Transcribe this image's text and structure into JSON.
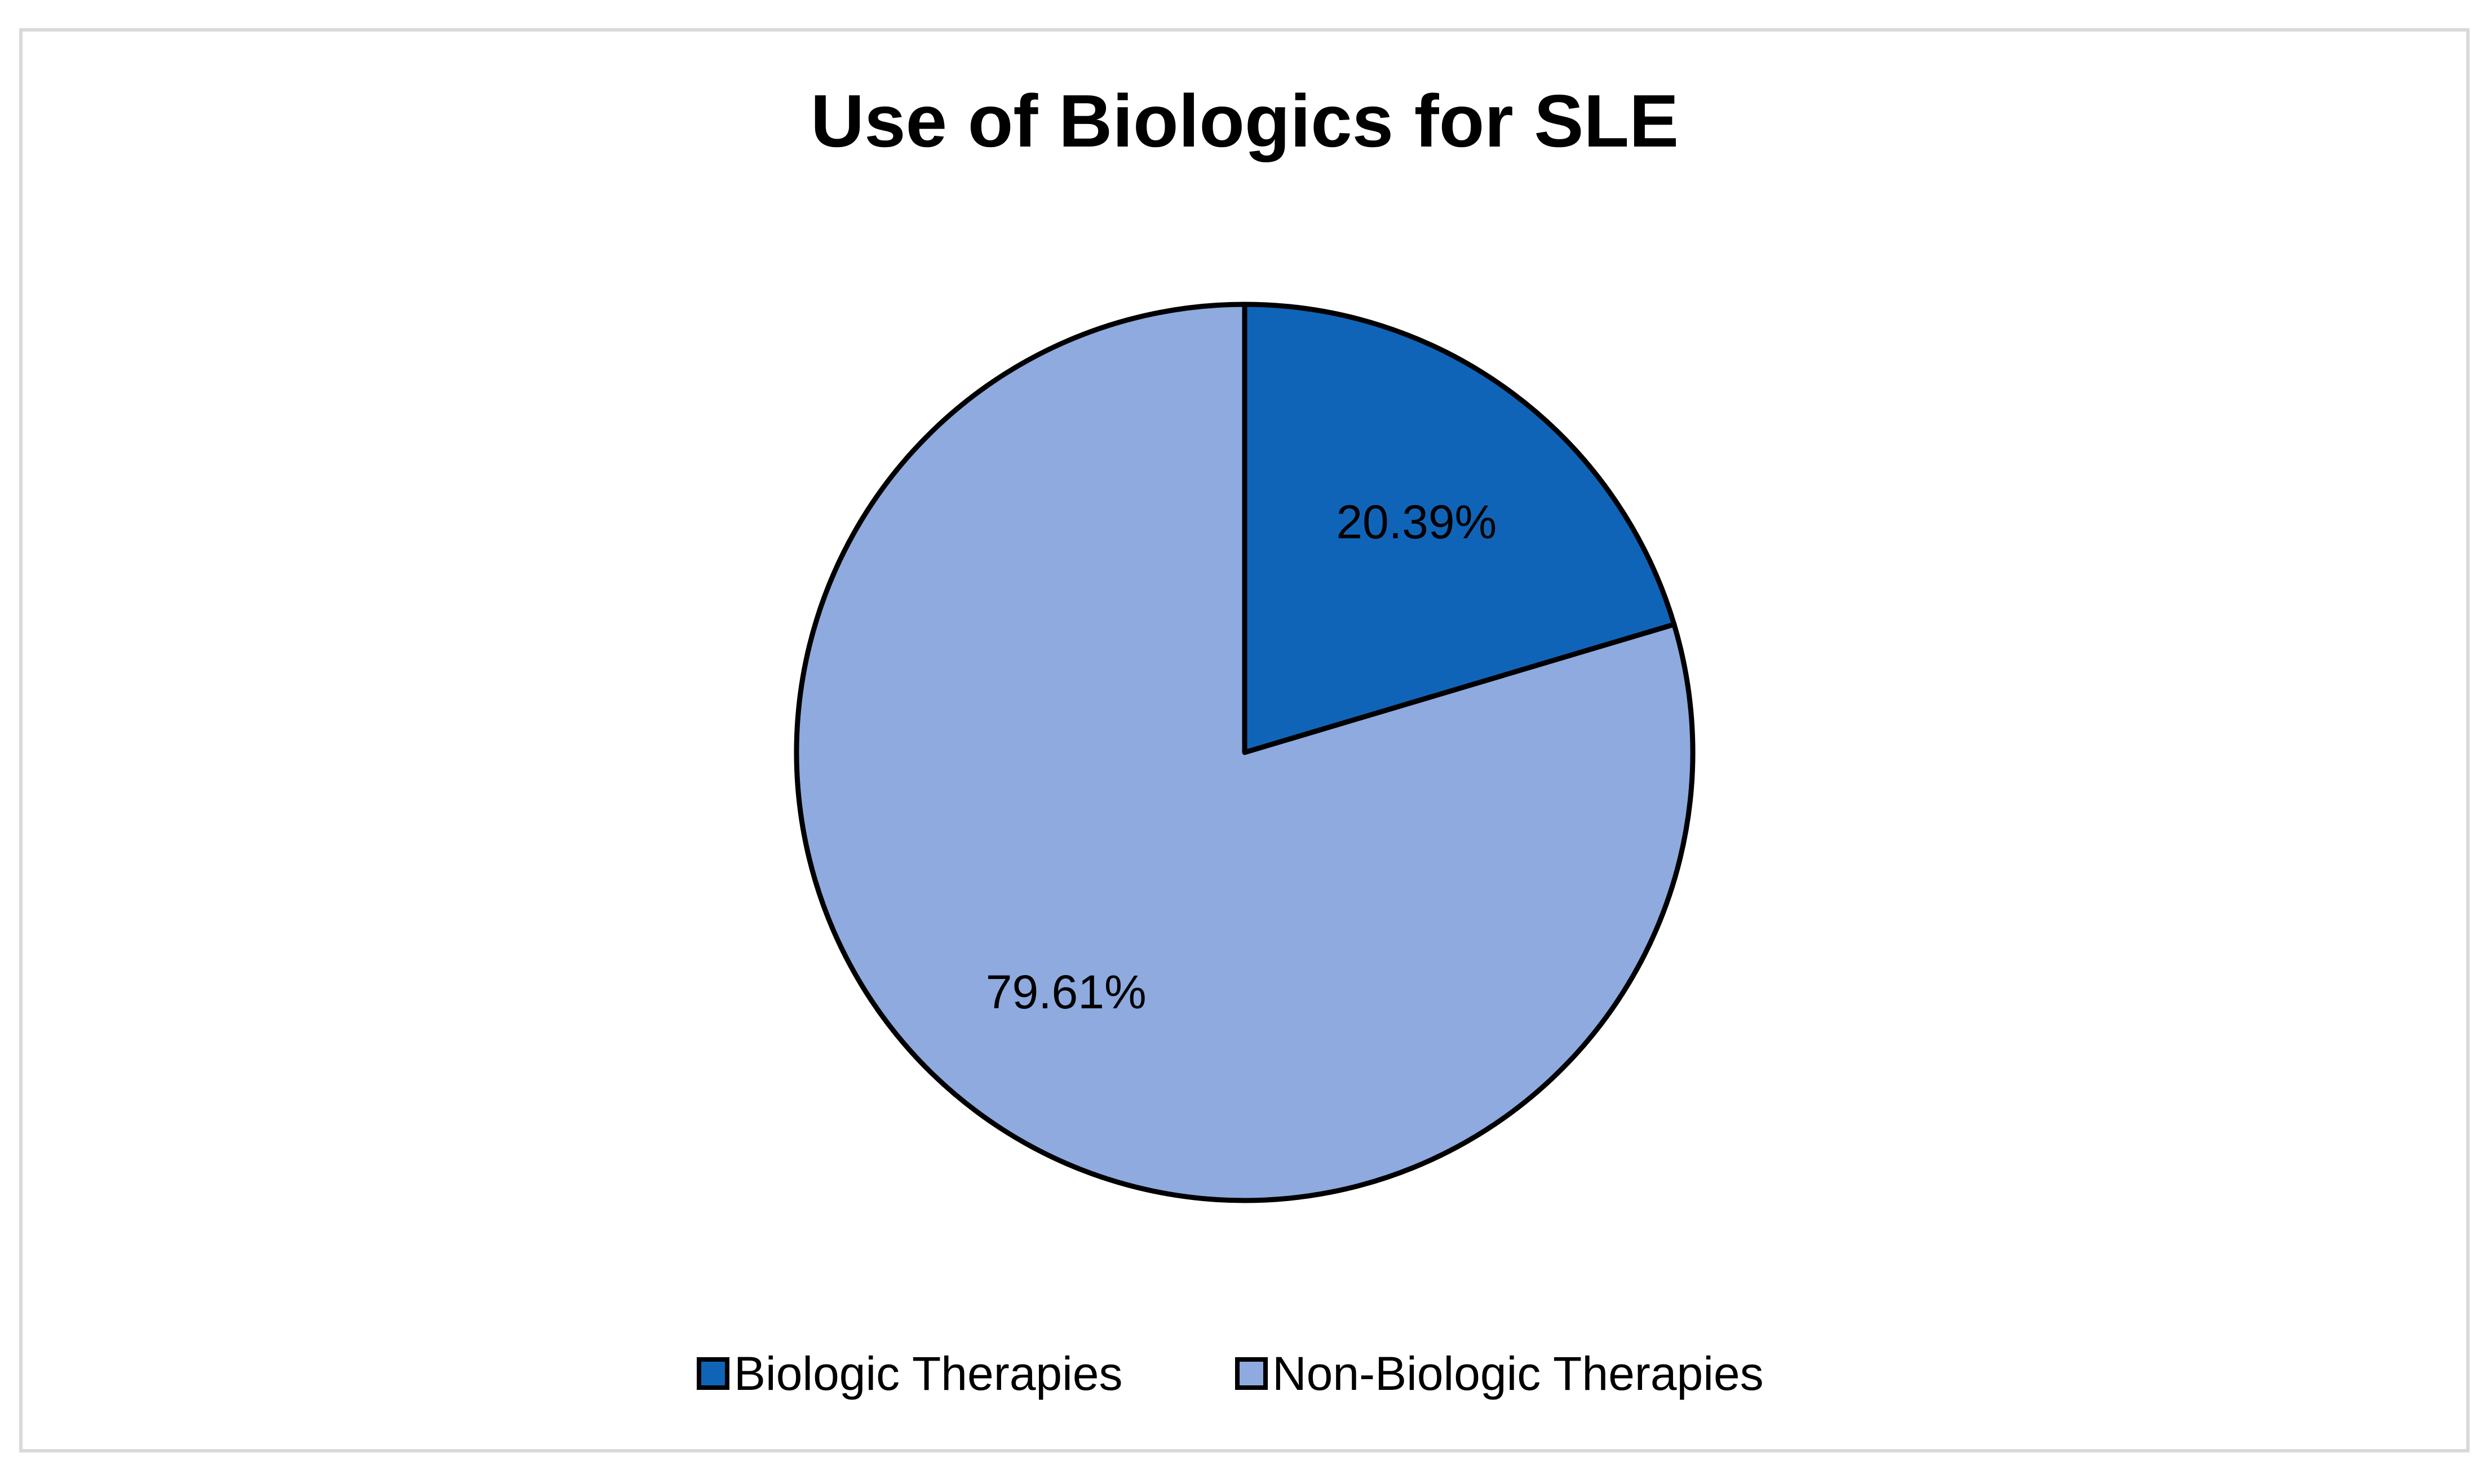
{
  "chart_data": {
    "type": "pie",
    "title": "Use of Biologics for SLE",
    "categories": [
      "Biologic Therapies",
      "Non-Biologic Therapies"
    ],
    "values": [
      20.39,
      79.61
    ],
    "data_labels": [
      "20.39%",
      "79.61%"
    ],
    "colors": [
      "#1064b8",
      "#8eaadf"
    ],
    "slice_edge_color": "#000000",
    "start_angle": "12 o'clock",
    "direction": "clockwise",
    "legend_position": "bottom",
    "frame_border_color": "#d9d9d9"
  }
}
